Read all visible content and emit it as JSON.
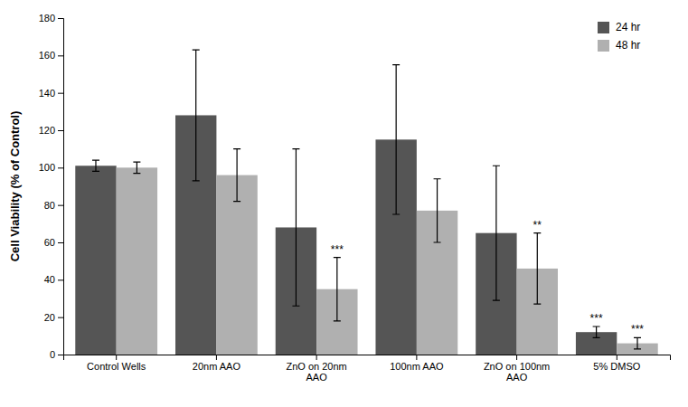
{
  "chart_data": {
    "type": "bar",
    "ylabel": "Cell Viability (% of Control)",
    "categories": [
      "Control Wells",
      "20nm AAO",
      "ZnO on 20nm\nAAO",
      "100nm AAO",
      "ZnO on 100nm\nAAO",
      "5% DMSO"
    ],
    "series": [
      {
        "name": "24 hr",
        "color": "#555555",
        "values": [
          101,
          128,
          68,
          115,
          65,
          12
        ],
        "errors": [
          3,
          35,
          42,
          40,
          36,
          3
        ]
      },
      {
        "name": "48 hr",
        "color": "#b0b0b0",
        "values": [
          100,
          96,
          35,
          77,
          46,
          6
        ],
        "errors": [
          3,
          14,
          17,
          17,
          19,
          3
        ]
      }
    ],
    "annotations": [
      {
        "text": "***",
        "category": "ZnO on 20nm\nAAO",
        "series": "48 hr"
      },
      {
        "text": "**",
        "category": "ZnO on 100nm\nAAO",
        "series": "48 hr"
      },
      {
        "text": "***",
        "category": "5% DMSO",
        "series": "24 hr"
      },
      {
        "text": "***",
        "category": "5% DMSO",
        "series": "48 hr"
      }
    ],
    "ylim": [
      0,
      180
    ],
    "yticks": [
      0,
      20,
      40,
      60,
      80,
      100,
      120,
      140,
      160,
      180
    ],
    "grid": false,
    "legend": "upper right"
  }
}
